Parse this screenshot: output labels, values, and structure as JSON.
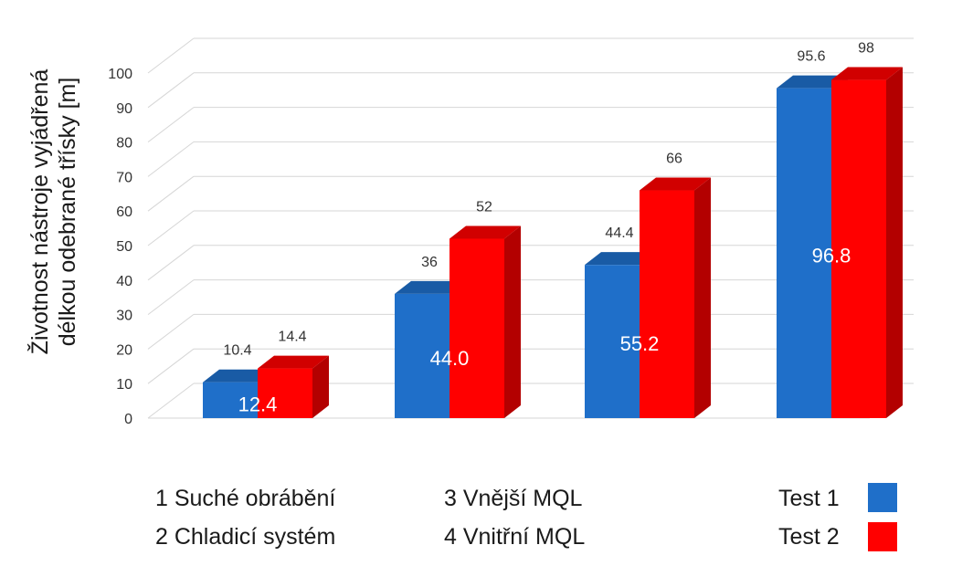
{
  "chart_data": {
    "type": "bar",
    "categories": [
      "1",
      "2",
      "3",
      "4"
    ],
    "series": [
      {
        "name": "Test 1",
        "color": "#1f6fc9",
        "values": [
          10.4,
          36,
          44.4,
          95.6
        ]
      },
      {
        "name": "Test 2",
        "color": "#ff0000",
        "values": [
          14.4,
          52,
          66,
          98
        ]
      }
    ],
    "inner_labels": [
      "12.4",
      "44.0",
      "55.2",
      "96.8"
    ],
    "ylabel_line1": "Životnost nástroje vyjádřená",
    "ylabel_line2": "délkou odebrané třísky [m]",
    "ylim": [
      0,
      100
    ],
    "yticks": [
      0,
      10,
      20,
      30,
      40,
      50,
      60,
      70,
      80,
      90,
      100
    ],
    "grid": true,
    "style": "3d"
  },
  "category_legend": [
    "1 Suché obrábění",
    "2 Chladicí systém",
    "3 Vnější MQL",
    "4 Vnitřní MQL"
  ],
  "series_legend": [
    {
      "label": "Test 1",
      "color": "#1f6fc9"
    },
    {
      "label": "Test 2",
      "color": "#ff0000"
    }
  ]
}
